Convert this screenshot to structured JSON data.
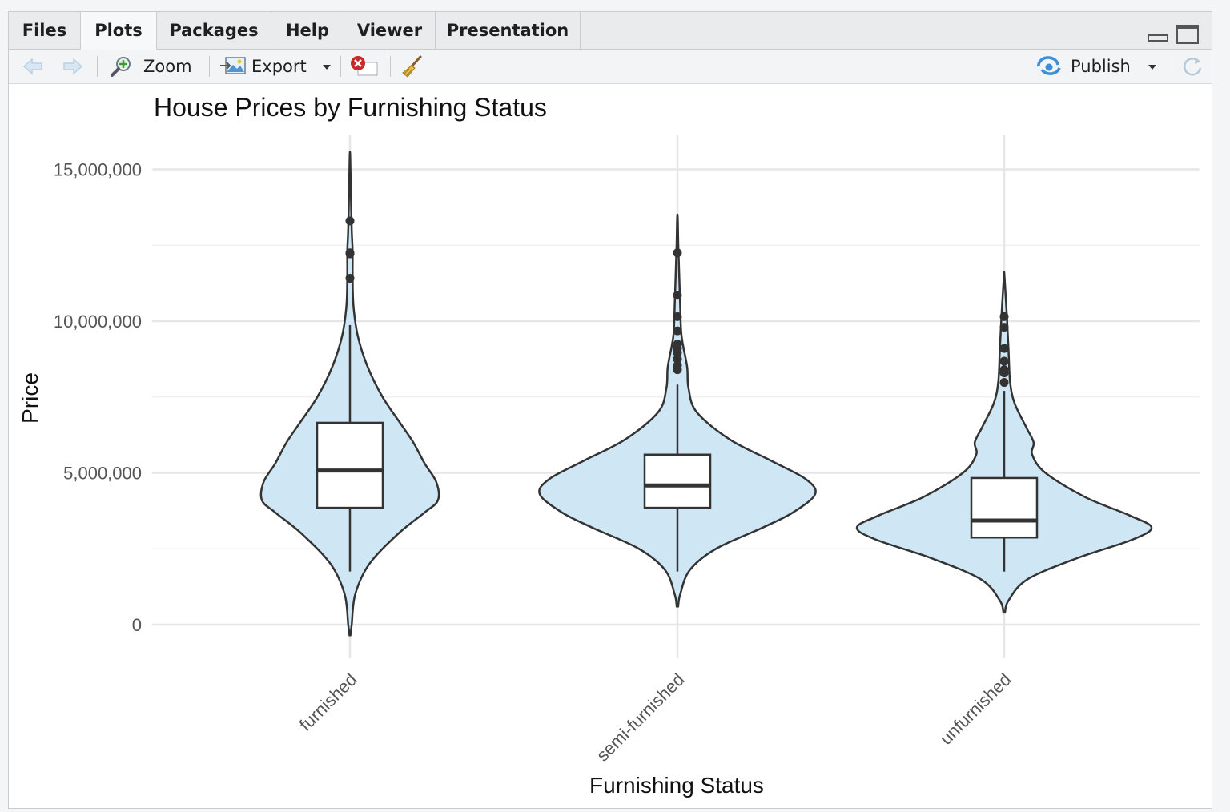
{
  "tabs": [
    {
      "label": "Files",
      "active": false
    },
    {
      "label": "Plots",
      "active": true
    },
    {
      "label": "Packages",
      "active": false
    },
    {
      "label": "Help",
      "active": false
    },
    {
      "label": "Viewer",
      "active": false
    },
    {
      "label": "Presentation",
      "active": false
    }
  ],
  "toolbar": {
    "back_icon": "arrow-left-icon",
    "forward_icon": "arrow-right-icon",
    "zoom_label": "Zoom",
    "export_label": "Export",
    "remove_icon": "remove-plot-icon",
    "clear_icon": "broom-icon",
    "publish_label": "Publish",
    "refresh_icon": "refresh-icon"
  },
  "chart_data": {
    "type": "violin",
    "title": "House Prices by Furnishing Status",
    "xlabel": "Furnishing Status",
    "ylabel": "Price",
    "categories": [
      "furnished",
      "semi-furnished",
      "unfurnished"
    ],
    "ylim": [
      -400000,
      16000000
    ],
    "yticks": [
      0,
      5000000,
      10000000,
      15000000
    ],
    "ytick_labels": [
      "0",
      "5,000,000",
      "10,000,000",
      "15,000,000"
    ],
    "grid": true,
    "fill_color": "#cfe6f4",
    "line_color": "#333333",
    "boxes": [
      {
        "category": "furnished",
        "q1": 3850000,
        "median": 5075000,
        "q3": 6650000,
        "whisker_low": 1750000,
        "whisker_high": 9870000,
        "outliers": [
          11410000,
          12250000,
          12215000,
          13300000
        ]
      },
      {
        "category": "semi-furnished",
        "q1": 3850000,
        "median": 4585000,
        "q3": 5600000,
        "whisker_low": 1750000,
        "whisker_high": 7910000,
        "outliers": [
          8400000,
          8540000,
          8750000,
          8960000,
          9100000,
          9240000,
          9681000,
          10150000,
          10850000,
          12250000
        ]
      },
      {
        "category": "unfurnished",
        "q1": 2870000,
        "median": 3430000,
        "q3": 4830000,
        "whisker_low": 1750000,
        "whisker_high": 7700000,
        "outliers": [
          7980000,
          8295000,
          8400000,
          8680000,
          9100000,
          9800000,
          10150000
        ]
      }
    ],
    "violins": [
      {
        "category": "furnished",
        "profile": [
          [
            -350000,
            0.005
          ],
          [
            0,
            0.02
          ],
          [
            1000000,
            0.06
          ],
          [
            2000000,
            0.22
          ],
          [
            3000000,
            0.55
          ],
          [
            3700000,
            0.85
          ],
          [
            4100000,
            1.0
          ],
          [
            4700000,
            0.98
          ],
          [
            5300000,
            0.85
          ],
          [
            6000000,
            0.72
          ],
          [
            6600000,
            0.58
          ],
          [
            7500000,
            0.37
          ],
          [
            8500000,
            0.2
          ],
          [
            9500000,
            0.09
          ],
          [
            10500000,
            0.04
          ],
          [
            11500000,
            0.03
          ],
          [
            12300000,
            0.03
          ],
          [
            13000000,
            0.02
          ],
          [
            14000000,
            0.012
          ],
          [
            15400000,
            0.003
          ]
        ]
      },
      {
        "category": "semi-furnished",
        "profile": [
          [
            600000,
            0.005
          ],
          [
            1000000,
            0.02
          ],
          [
            1800000,
            0.09
          ],
          [
            2500000,
            0.28
          ],
          [
            3200000,
            0.62
          ],
          [
            3700000,
            0.84
          ],
          [
            4300000,
            1.0
          ],
          [
            4800000,
            0.93
          ],
          [
            5400000,
            0.68
          ],
          [
            6100000,
            0.38
          ],
          [
            7000000,
            0.14
          ],
          [
            7800000,
            0.08
          ],
          [
            8500000,
            0.07
          ],
          [
            9500000,
            0.03
          ],
          [
            10500000,
            0.02
          ],
          [
            11500000,
            0.013
          ],
          [
            12500000,
            0.006
          ],
          [
            13400000,
            0.002
          ]
        ]
      },
      {
        "category": "unfurnished",
        "profile": [
          [
            400000,
            0.005
          ],
          [
            800000,
            0.03
          ],
          [
            1500000,
            0.16
          ],
          [
            2200000,
            0.5
          ],
          [
            2800000,
            0.87
          ],
          [
            3200000,
            1.0
          ],
          [
            3600000,
            0.85
          ],
          [
            4200000,
            0.55
          ],
          [
            5000000,
            0.28
          ],
          [
            5600000,
            0.19
          ],
          [
            6000000,
            0.2
          ],
          [
            6500000,
            0.15
          ],
          [
            7300000,
            0.07
          ],
          [
            8000000,
            0.04
          ],
          [
            9000000,
            0.03
          ],
          [
            10000000,
            0.02
          ],
          [
            11000000,
            0.008
          ],
          [
            11550000,
            0.001
          ]
        ]
      }
    ]
  }
}
